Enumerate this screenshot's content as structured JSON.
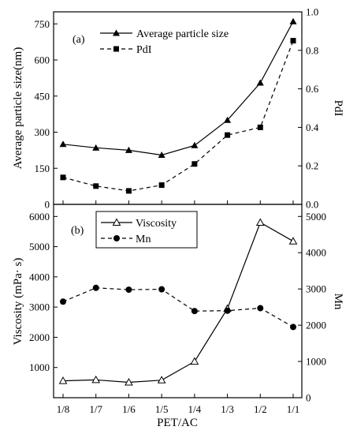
{
  "chart_data": [
    {
      "panel_label": "(a)",
      "type": "line",
      "categories": [
        "1/8",
        "1/7",
        "1/6",
        "1/5",
        "1/4",
        "1/3",
        "1/2",
        "1/1"
      ],
      "xlabel": "PET/AC",
      "ylabel": "Average particle size(nm)",
      "ylabel_right": "PdI",
      "ylim": [
        0,
        800
      ],
      "yticks": [
        0,
        150,
        300,
        450,
        600,
        750
      ],
      "ylim_right": [
        0,
        1.0
      ],
      "yticks_right": [
        "0.0",
        "0.2",
        "0.4",
        "0.6",
        "0.8",
        "1.0"
      ],
      "legend_position": "top-left",
      "series": [
        {
          "name": "Average particle size",
          "axis": "left",
          "marker": "filled-triangle",
          "line": "solid",
          "values": [
            250,
            235,
            225,
            205,
            245,
            350,
            505,
            760
          ]
        },
        {
          "name": "PdI",
          "axis": "right",
          "marker": "filled-square",
          "line": "dashed",
          "values": [
            0.14,
            0.095,
            0.07,
            0.1,
            0.21,
            0.36,
            0.4,
            0.85
          ]
        }
      ]
    },
    {
      "panel_label": "(b)",
      "type": "line",
      "categories": [
        "1/8",
        "1/7",
        "1/6",
        "1/5",
        "1/4",
        "1/3",
        "1/2",
        "1/1"
      ],
      "xlabel": "PET/AC",
      "ylabel": "Viscosity (mPa· s)",
      "ylabel_right": "Mn",
      "ylim": [
        0,
        6400
      ],
      "yticks": [
        0,
        1000,
        2000,
        3000,
        4000,
        5000,
        6000
      ],
      "ylim_right": [
        0,
        5333
      ],
      "yticks_right": [
        0,
        1000,
        2000,
        3000,
        4000,
        5000
      ],
      "legend_position": "top-left",
      "series": [
        {
          "name": "Viscosity",
          "axis": "left",
          "marker": "open-triangle",
          "line": "solid",
          "values": [
            560,
            590,
            510,
            580,
            1200,
            2950,
            5800,
            5180
          ]
        },
        {
          "name": "Mn",
          "axis": "right",
          "marker": "filled-circle",
          "line": "dashed",
          "values": [
            2650,
            3030,
            2980,
            2990,
            2390,
            2400,
            2470,
            1950
          ]
        }
      ]
    }
  ]
}
